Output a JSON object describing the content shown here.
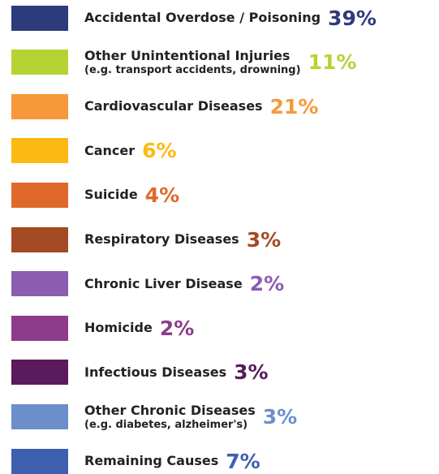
{
  "items": [
    {
      "label": "Accidental Overdose / Poisoning",
      "value": "39%",
      "color": "#2c3b7c"
    },
    {
      "label": "Other Unintentional Injuries",
      "note": "(e.g. transport accidents, drowning)",
      "value": "11%",
      "color": "#b6d334"
    },
    {
      "label": "Cardiovascular Diseases",
      "value": "21%",
      "color": "#f7983a"
    },
    {
      "label": "Cancer",
      "value": "6%",
      "color": "#fdb913"
    },
    {
      "label": "Suicide",
      "value": "4%",
      "color": "#e0692a"
    },
    {
      "label": "Respiratory Diseases",
      "value": "3%",
      "color": "#a24b25"
    },
    {
      "label": "Chronic Liver Disease",
      "value": "2%",
      "color": "#8a5db0"
    },
    {
      "label": "Homicide",
      "value": "2%",
      "color": "#8c3c8b"
    },
    {
      "label": "Infectious Diseases",
      "value": "3%",
      "color": "#5b1a5b"
    },
    {
      "label": "Other Chronic Diseases",
      "note": "(e.g. diabetes, alzheimer's)",
      "value": "3%",
      "color": "#6c8fcc"
    },
    {
      "label": "Remaining Causes",
      "value": "7%",
      "color": "#3e5fae"
    }
  ]
}
